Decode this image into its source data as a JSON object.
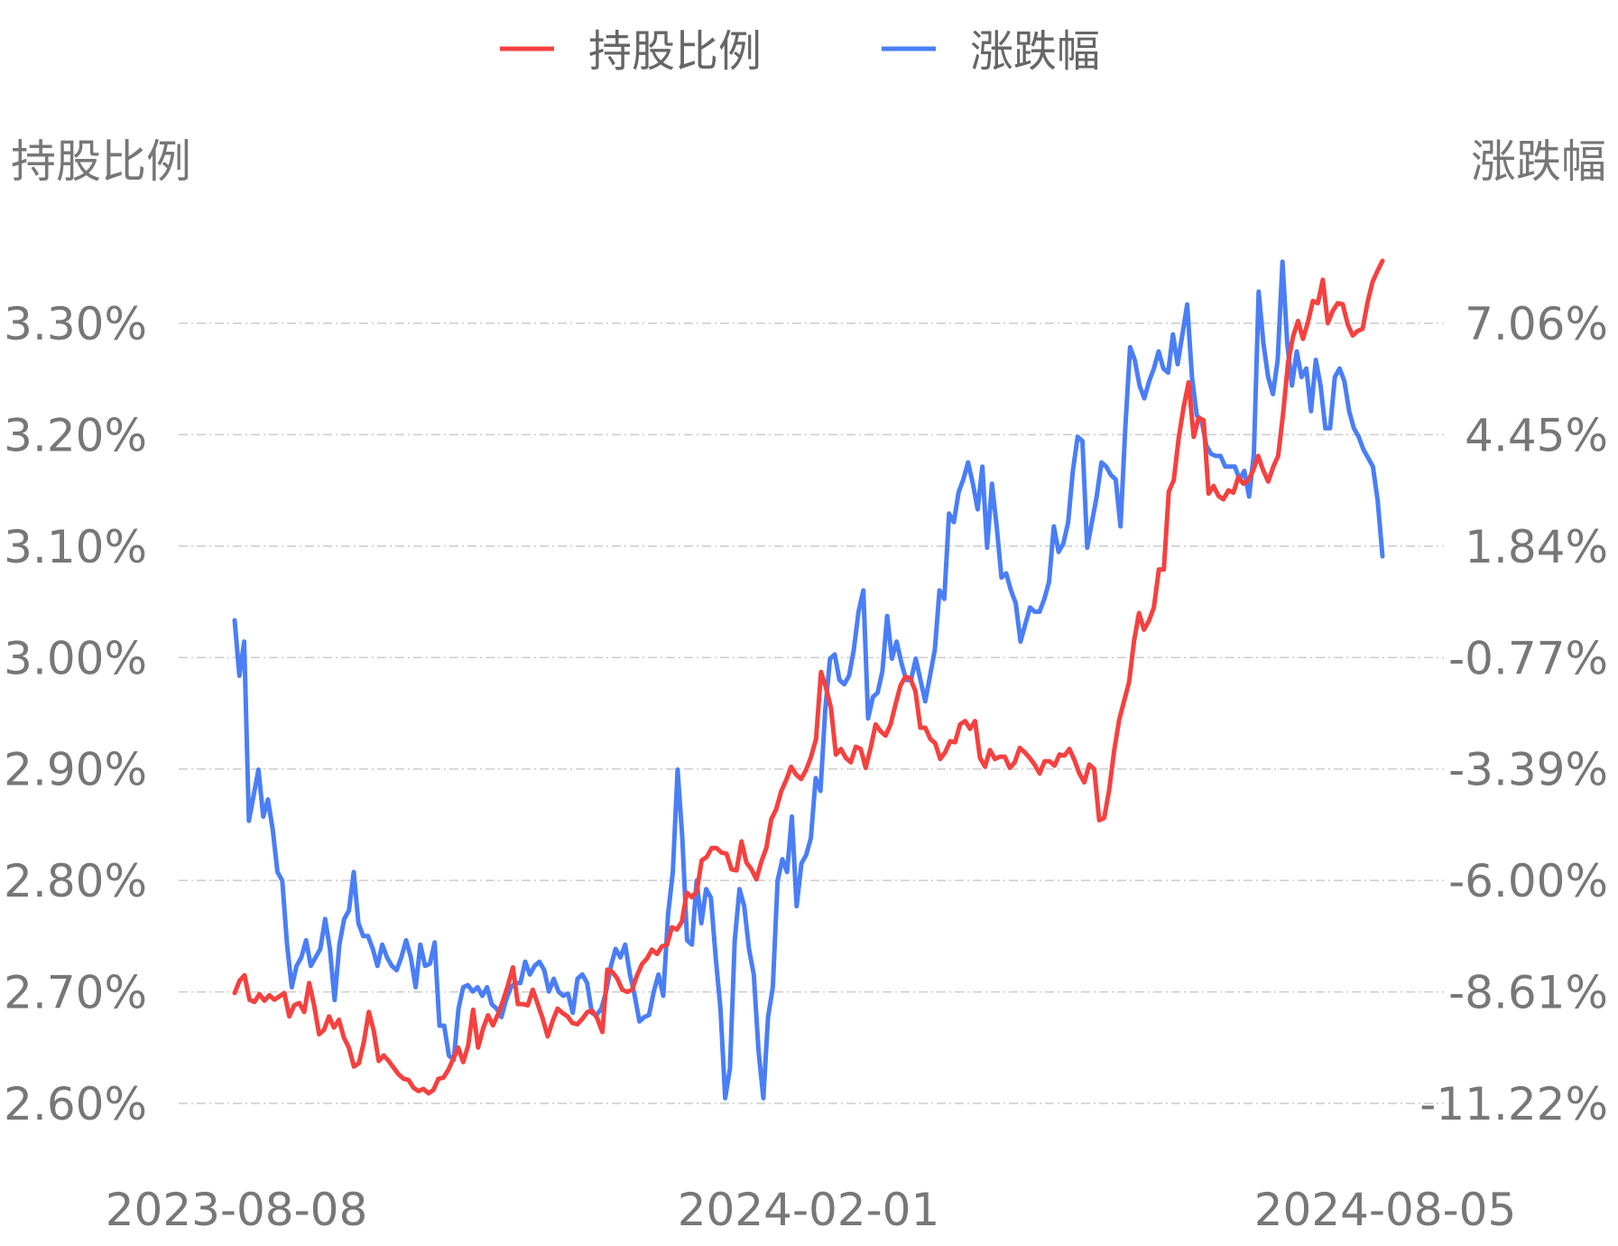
{
  "chart_data": {
    "type": "line",
    "legend": {
      "position": "top-center",
      "items": [
        {
          "label": "持股比例",
          "color": "#f5413f"
        },
        {
          "label": "涨跌幅",
          "color": "#4a7ef7"
        }
      ]
    },
    "left_axis": {
      "title": "持股比例",
      "ticks": [
        "3.30%",
        "3.20%",
        "3.10%",
        "3.00%",
        "2.90%",
        "2.80%",
        "2.70%",
        "2.60%"
      ],
      "range": [
        2.6,
        3.3
      ]
    },
    "right_axis": {
      "title": "涨跌幅",
      "ticks": [
        "7.06%",
        "4.45%",
        "1.84%",
        "-0.77%",
        "-3.39%",
        "-6.00%",
        "-8.61%",
        "-11.22%"
      ],
      "range": [
        -11.22,
        7.06
      ]
    },
    "x_axis": {
      "ticks": [
        "2023-08-08",
        "2024-02-01",
        "2024-08-05"
      ]
    },
    "grid": true,
    "series": [
      {
        "name": "持股比例",
        "axis": "left",
        "color": "#f5413f",
        "values": [
          2.699,
          2.71,
          2.715,
          2.693,
          2.691,
          2.698,
          2.692,
          2.697,
          2.693,
          2.696,
          2.699,
          2.678,
          2.688,
          2.69,
          2.682,
          2.708,
          2.688,
          2.662,
          2.666,
          2.678,
          2.668,
          2.675,
          2.659,
          2.65,
          2.633,
          2.636,
          2.655,
          2.682,
          2.665,
          2.638,
          2.643,
          2.638,
          2.632,
          2.626,
          2.622,
          2.621,
          2.614,
          2.611,
          2.613,
          2.609,
          2.612,
          2.622,
          2.623,
          2.63,
          2.64,
          2.65,
          2.637,
          2.652,
          2.684,
          2.65,
          2.667,
          2.679,
          2.67,
          2.68,
          2.692,
          2.706,
          2.722,
          2.689,
          2.689,
          2.688,
          2.702,
          2.689,
          2.676,
          2.66,
          2.674,
          2.685,
          2.681,
          2.678,
          2.672,
          2.671,
          2.676,
          2.682,
          2.683,
          2.676,
          2.664,
          2.72,
          2.718,
          2.712,
          2.702,
          2.7,
          2.702,
          2.715,
          2.725,
          2.73,
          2.738,
          2.734,
          2.741,
          2.742,
          2.758,
          2.756,
          2.763,
          2.789,
          2.785,
          2.79,
          2.818,
          2.821,
          2.829,
          2.829,
          2.825,
          2.824,
          2.81,
          2.809,
          2.835,
          2.816,
          2.81,
          2.801,
          2.817,
          2.829,
          2.855,
          2.864,
          2.88,
          2.89,
          2.902,
          2.895,
          2.891,
          2.899,
          2.911,
          2.927,
          2.987,
          2.973,
          2.955,
          2.913,
          2.918,
          2.91,
          2.906,
          2.92,
          2.918,
          2.901,
          2.919,
          2.94,
          2.934,
          2.93,
          2.94,
          2.958,
          2.975,
          2.983,
          2.981,
          2.97,
          2.937,
          2.937,
          2.927,
          2.923,
          2.909,
          2.915,
          2.925,
          2.924,
          2.94,
          2.943,
          2.936,
          2.943,
          2.91,
          2.902,
          2.917,
          2.909,
          2.911,
          2.911,
          2.901,
          2.906,
          2.919,
          2.915,
          2.91,
          2.904,
          2.896,
          2.907,
          2.907,
          2.903,
          2.913,
          2.912,
          2.918,
          2.908,
          2.896,
          2.888,
          2.904,
          2.9,
          2.854,
          2.856,
          2.881,
          2.916,
          2.944,
          2.961,
          2.978,
          3.015,
          3.04,
          3.025,
          3.033,
          3.045,
          3.079,
          3.079,
          3.149,
          3.159,
          3.197,
          3.225,
          3.247,
          3.198,
          3.215,
          3.213,
          3.147,
          3.154,
          3.145,
          3.142,
          3.15,
          3.148,
          3.162,
          3.156,
          3.159,
          3.168,
          3.181,
          3.168,
          3.158,
          3.171,
          3.181,
          3.219,
          3.265,
          3.288,
          3.302,
          3.286,
          3.301,
          3.32,
          3.318,
          3.339,
          3.3,
          3.311,
          3.318,
          3.317,
          3.299,
          3.289,
          3.293,
          3.295,
          3.319,
          3.337,
          3.347,
          3.356
        ]
      },
      {
        "name": "涨跌幅",
        "axis": "right",
        "color": "#4a7ef7",
        "values": [
          0.1,
          -1.2,
          -0.4,
          -4.6,
          -4.0,
          -3.4,
          -4.5,
          -4.1,
          -4.8,
          -5.8,
          -6.0,
          -7.5,
          -8.5,
          -8.0,
          -7.8,
          -7.4,
          -8.0,
          -7.8,
          -7.6,
          -6.9,
          -7.6,
          -8.8,
          -7.5,
          -6.9,
          -6.7,
          -5.8,
          -7.0,
          -7.3,
          -7.3,
          -7.6,
          -8.0,
          -7.5,
          -7.8,
          -8.0,
          -8.1,
          -7.8,
          -7.4,
          -7.8,
          -8.5,
          -7.5,
          -8.0,
          -7.95,
          -7.45,
          -9.4,
          -9.4,
          -10.1,
          -10.2,
          -9.0,
          -8.5,
          -8.45,
          -8.6,
          -8.5,
          -8.7,
          -8.5,
          -8.9,
          -9.0,
          -9.2,
          -8.8,
          -8.5,
          -8.4,
          -8.4,
          -7.9,
          -8.2,
          -8.0,
          -7.9,
          -8.1,
          -8.6,
          -8.3,
          -8.6,
          -8.7,
          -8.65,
          -9.1,
          -8.3,
          -8.2,
          -8.4,
          -9.1,
          -9.15,
          -9.0,
          -8.6,
          -8.0,
          -7.6,
          -7.8,
          -7.5,
          -8.2,
          -8.7,
          -9.3,
          -9.2,
          -9.15,
          -8.6,
          -8.2,
          -8.7,
          -6.8,
          -5.8,
          -3.4,
          -5.0,
          -7.4,
          -7.5,
          -6.0,
          -7.0,
          -6.2,
          -6.4,
          -7.8,
          -9.0,
          -11.1,
          -10.4,
          -7.4,
          -6.2,
          -6.6,
          -7.6,
          -8.2,
          -10.0,
          -11.1,
          -9.2,
          -8.5,
          -6.0,
          -5.5,
          -5.8,
          -4.5,
          -6.6,
          -5.6,
          -5.4,
          -5.0,
          -3.6,
          -3.9,
          -2.0,
          -0.8,
          -0.7,
          -1.3,
          -1.4,
          -1.2,
          -0.6,
          0.3,
          0.8,
          -2.2,
          -1.7,
          -1.6,
          -1.1,
          0.2,
          -0.8,
          -0.4,
          -0.9,
          -1.3,
          -1.3,
          -0.8,
          -1.3,
          -1.8,
          -1.2,
          -0.6,
          0.8,
          0.6,
          2.6,
          2.4,
          3.1,
          3.4,
          3.8,
          3.3,
          2.7,
          3.7,
          1.8,
          3.3,
          2.3,
          1.1,
          1.2,
          0.8,
          0.5,
          -0.4,
          0.0,
          0.4,
          0.3,
          0.3,
          0.6,
          1.0,
          2.3,
          1.7,
          1.9,
          2.4,
          3.6,
          4.4,
          4.3,
          1.8,
          2.4,
          3.0,
          3.8,
          3.7,
          3.5,
          3.4,
          2.3,
          4.6,
          6.5,
          6.2,
          5.6,
          5.3,
          5.7,
          6.0,
          6.4,
          6.0,
          5.9,
          6.8,
          6.1,
          6.8,
          7.5,
          5.8,
          4.9,
          4.8,
          4.2,
          4.0,
          3.95,
          3.95,
          3.7,
          3.7,
          3.7,
          3.4,
          3.6,
          3.0,
          4.0,
          7.8,
          6.6,
          5.8,
          5.4,
          6.2,
          8.5,
          6.6,
          5.6,
          6.4,
          5.8,
          6.0,
          5.0,
          6.2,
          5.6,
          4.6,
          4.6,
          5.8,
          6.0,
          5.7,
          5.0,
          4.6,
          4.4,
          4.1,
          3.9,
          3.7,
          2.9,
          1.6
        ]
      }
    ]
  }
}
